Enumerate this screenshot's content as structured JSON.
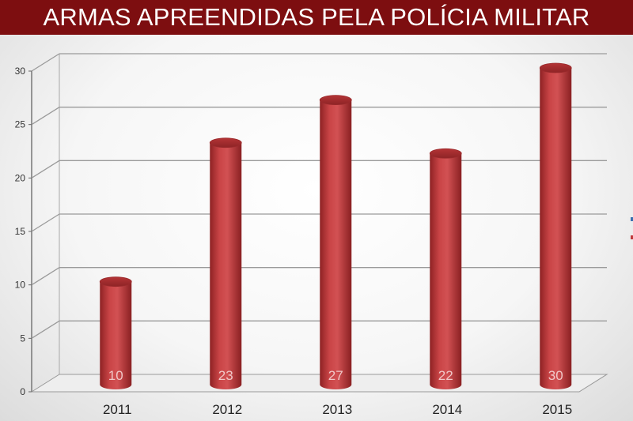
{
  "chart_data": {
    "type": "bar",
    "title": "ARMAS APREENDIDAS PELA POLÍCIA MILITAR",
    "categories": [
      "2011",
      "2012",
      "2013",
      "2014",
      "2015"
    ],
    "values": [
      10,
      23,
      27,
      22,
      30
    ],
    "data_labels": [
      "10",
      "23",
      "27",
      "22",
      "30"
    ],
    "ylim": [
      0,
      30
    ],
    "yticks": [
      "0",
      "5",
      "10",
      "15",
      "20",
      "25",
      "30"
    ],
    "grid": true,
    "style": "3d-cylinder",
    "colors": {
      "bar": "#c0393b",
      "title_bar": "#7d0e10",
      "grid": "#999999"
    }
  }
}
